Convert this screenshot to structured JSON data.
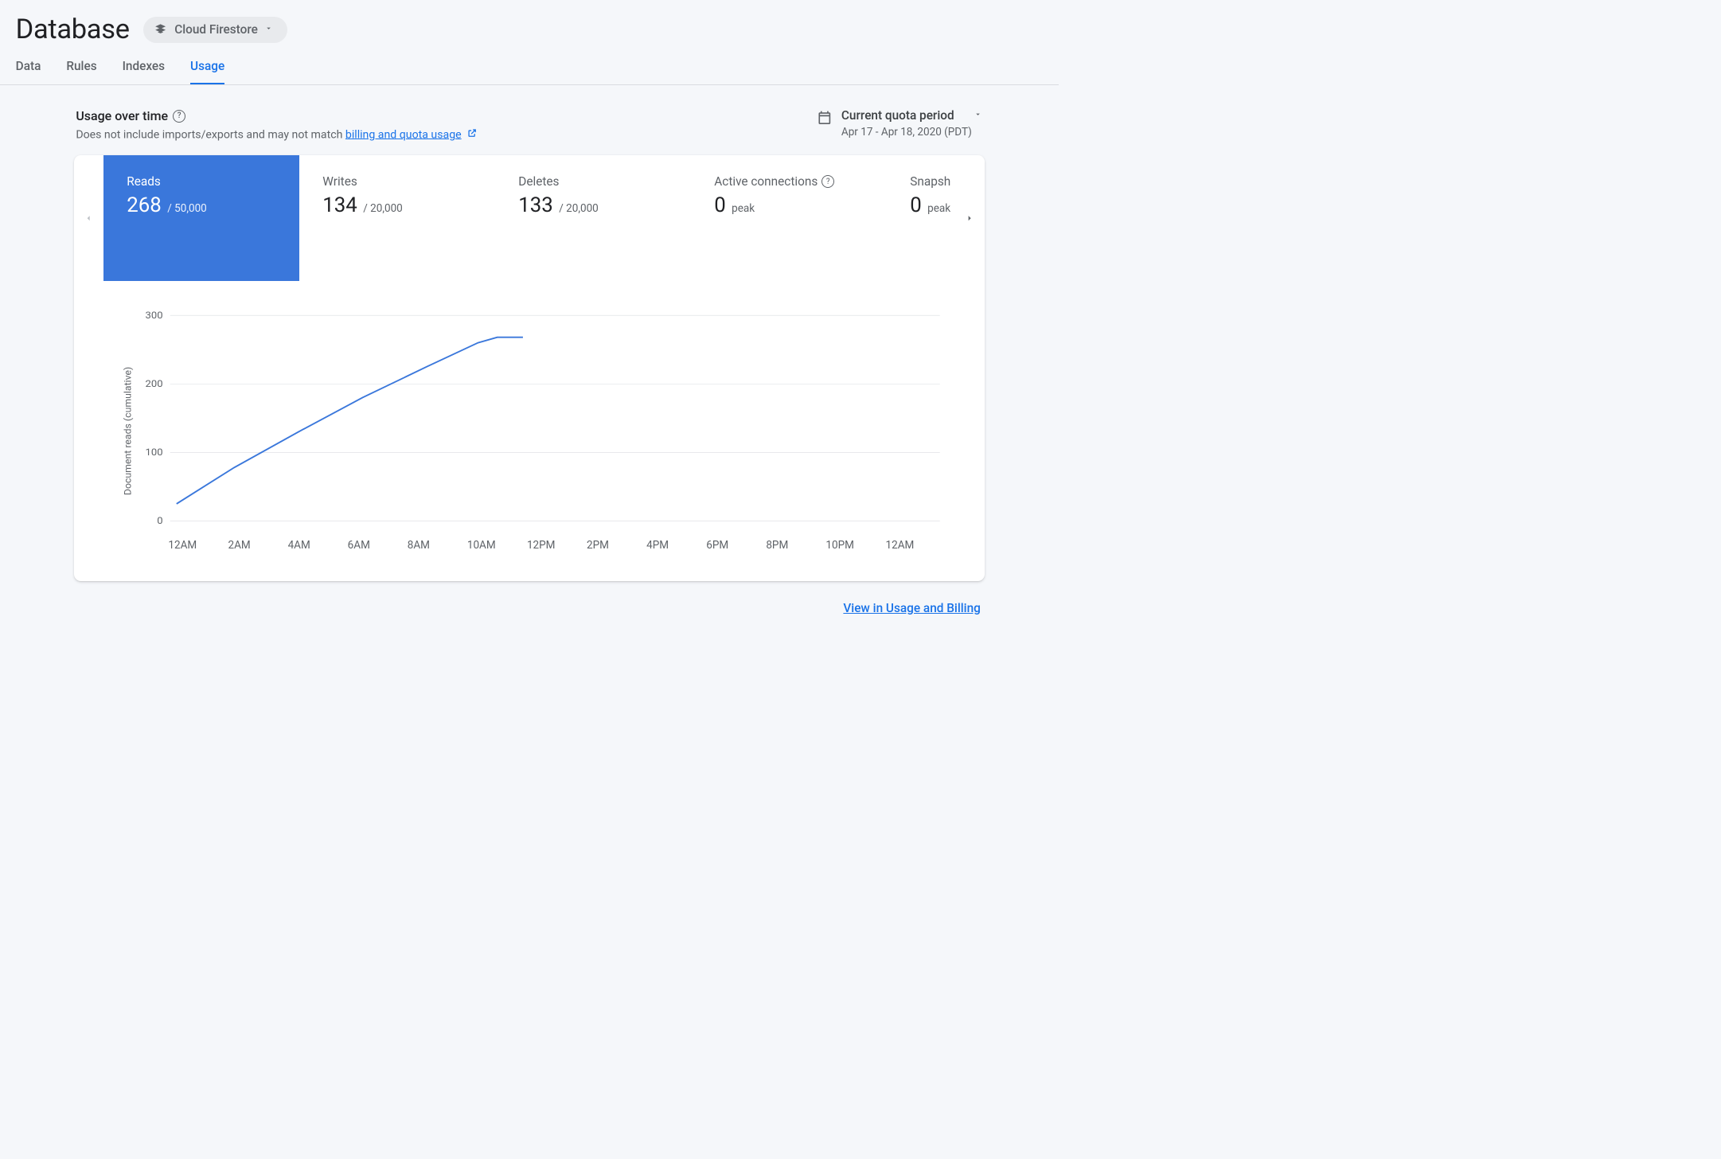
{
  "header": {
    "title": "Database",
    "switcher_label": "Cloud Firestore",
    "tabs": [
      "Data",
      "Rules",
      "Indexes",
      "Usage"
    ],
    "active_tab": "Usage"
  },
  "usage": {
    "section_title": "Usage over time",
    "subtitle_prefix": "Does not include imports/exports and may not match ",
    "subtitle_link": "billing and quota usage",
    "period_title": "Current quota period",
    "period_range": "Apr 17 - Apr 18, 2020 (PDT)"
  },
  "metrics": [
    {
      "label": "Reads",
      "value": "268",
      "limit": "/ 50,000",
      "active": true
    },
    {
      "label": "Writes",
      "value": "134",
      "limit": "/ 20,000",
      "active": false
    },
    {
      "label": "Deletes",
      "value": "133",
      "limit": "/ 20,000",
      "active": false
    },
    {
      "label": "Active connections",
      "value": "0",
      "limit": "peak",
      "active": false,
      "help": true
    },
    {
      "label": "Snapshot listeners",
      "value": "0",
      "limit": "peak",
      "active": false
    }
  ],
  "chart": {
    "type": "line",
    "y_label": "Document reads (cumulative)",
    "ylim": [
      0,
      300
    ],
    "ytick_step": 100,
    "y_ticks": [
      0,
      100,
      200,
      300
    ],
    "x_labels": [
      "12AM",
      "2AM",
      "4AM",
      "6AM",
      "8AM",
      "10AM",
      "12PM",
      "2PM",
      "4PM",
      "6PM",
      "8PM",
      "10PM",
      "12AM"
    ],
    "line_color": "#3a77db",
    "grid_color": "#dadce0",
    "background_color": "#ffffff",
    "label_fontsize": 20,
    "line_width": 3,
    "data": [
      {
        "x": 0.2,
        "y": 25
      },
      {
        "x": 2,
        "y": 78
      },
      {
        "x": 4,
        "y": 130
      },
      {
        "x": 6,
        "y": 180
      },
      {
        "x": 8,
        "y": 225
      },
      {
        "x": 9.6,
        "y": 260
      },
      {
        "x": 10.2,
        "y": 268
      },
      {
        "x": 11,
        "y": 268
      }
    ]
  },
  "footer": {
    "link_text": "View in Usage and Billing"
  },
  "colors": {
    "primary": "#1a73e8",
    "metric_active_bg": "#3a77db",
    "text": "#202124",
    "text_secondary": "#5f6368",
    "border": "#dadce0",
    "page_bg": "#f5f7fa"
  }
}
